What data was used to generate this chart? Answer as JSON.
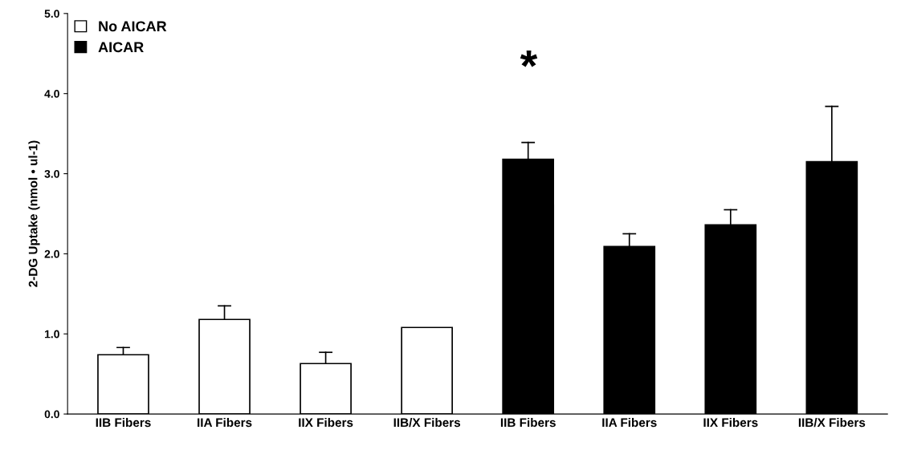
{
  "chart_data": {
    "type": "bar",
    "ylabel": "2-DG Uptake (nmol • ul-1)",
    "categories": [
      "IIB Fibers",
      "IIA Fibers",
      "IIX Fibers",
      "IIB/X Fibers",
      "IIB Fibers",
      "IIA Fibers",
      "IIX Fibers",
      "IIB/X Fibers"
    ],
    "series": [
      {
        "name": "No AICAR",
        "color": "#ffffff",
        "values": [
          0.74,
          1.18,
          0.63,
          1.08,
          null,
          null,
          null,
          null
        ],
        "errors": [
          [
            0.74,
            0.83
          ],
          [
            1.18,
            1.35
          ],
          [
            0.63,
            0.77
          ],
          null,
          null,
          null,
          null,
          null
        ]
      },
      {
        "name": "AICAR",
        "color": "#000000",
        "values": [
          null,
          null,
          null,
          null,
          3.18,
          2.09,
          2.36,
          3.15
        ],
        "errors": [
          null,
          null,
          null,
          null,
          [
            3.18,
            3.39
          ],
          [
            2.09,
            2.25
          ],
          [
            2.36,
            2.55
          ],
          [
            3.15,
            3.84
          ]
        ]
      }
    ],
    "annotations": [
      "*"
    ],
    "ylim": [
      0,
      5
    ],
    "yticks": [
      {
        "value": 0,
        "label": "0.0"
      },
      {
        "value": 1,
        "label": "1.0"
      },
      {
        "value": 2,
        "label": "2.0"
      },
      {
        "value": 3,
        "label": "3.0"
      },
      {
        "value": 4,
        "label": "4.0"
      },
      {
        "value": 5,
        "label": "5.0"
      }
    ],
    "legend": "top left",
    "grid": false
  }
}
